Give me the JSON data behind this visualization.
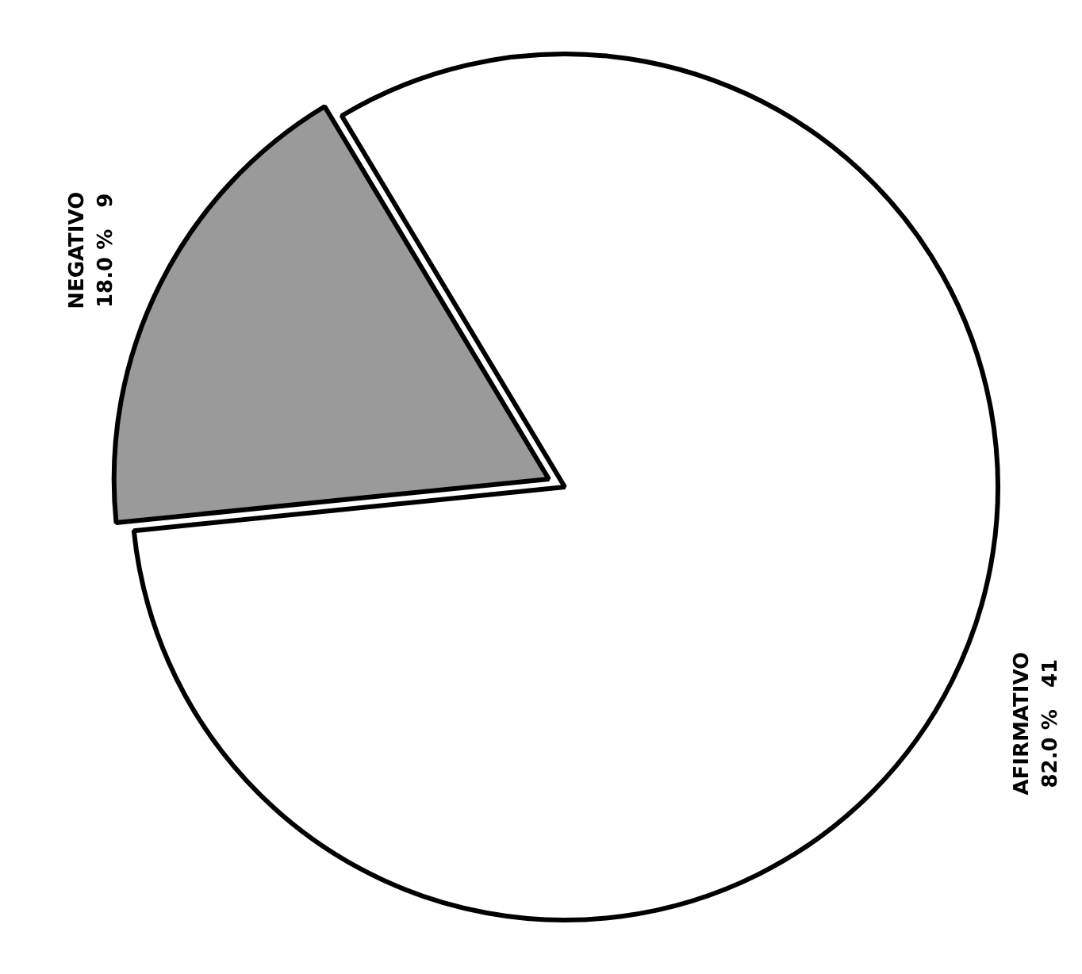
{
  "chart_data": {
    "type": "pie",
    "categories": [
      "AFIRMATIVO",
      "NEGATIVO"
    ],
    "values": [
      41,
      9
    ],
    "colors": [
      "#ffffff",
      "#9a9a9a"
    ],
    "value_labels": [
      "82.0 %   41",
      "18.0 %   9"
    ],
    "legend": false
  }
}
